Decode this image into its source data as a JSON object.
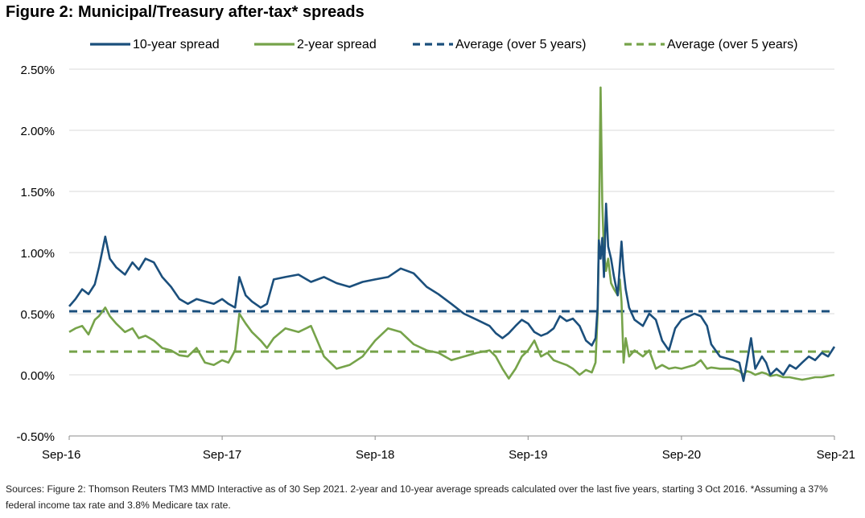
{
  "title": "Figure 2: Municipal/Treasury after-tax* spreads",
  "source": "Sources: Figure 2: Thomson Reuters TM3 MMD Interactive as of 30 Sep 2021. 2-year and 10-year average spreads calculated over the last five years, starting 3 Oct 2016. *Assuming a 37% federal income tax rate and 3.8% Medicare tax rate.",
  "colors": {
    "ten_year": "#1b4f7c",
    "two_year": "#76a34a",
    "grid": "#d9d9d9",
    "axis": "#8c8c8c"
  },
  "chart_data": {
    "type": "line",
    "xlim": [
      "2016-09-30",
      "2021-09-30"
    ],
    "ylim": [
      -0.5,
      2.5
    ],
    "y_ticks": [
      {
        "value": 2.5,
        "label": "2.50%"
      },
      {
        "value": 2.0,
        "label": "2.00%"
      },
      {
        "value": 1.5,
        "label": "1.50%"
      },
      {
        "value": 1.0,
        "label": "1.00%"
      },
      {
        "value": 0.5,
        "label": "0.50%"
      },
      {
        "value": 0.0,
        "label": "0.00%"
      },
      {
        "value": -0.5,
        "label": "-0.50%"
      }
    ],
    "x_ticks": [
      {
        "value": "2016-09-30",
        "label": "Sep-16"
      },
      {
        "value": "2017-09-30",
        "label": "Sep-17"
      },
      {
        "value": "2018-09-30",
        "label": "Sep-18"
      },
      {
        "value": "2019-09-30",
        "label": "Sep-19"
      },
      {
        "value": "2020-09-30",
        "label": "Sep-20"
      },
      {
        "value": "2021-09-30",
        "label": "Sep-21"
      }
    ],
    "grid": "horizontal",
    "legend_position": "top",
    "series": [
      {
        "name": "10-year spread",
        "style": "solid",
        "color": "#1b4f7c",
        "points": [
          [
            "2016-09-30",
            0.56
          ],
          [
            "2016-10-15",
            0.62
          ],
          [
            "2016-10-31",
            0.7
          ],
          [
            "2016-11-15",
            0.66
          ],
          [
            "2016-11-30",
            0.74
          ],
          [
            "2016-12-10",
            0.88
          ],
          [
            "2016-12-25",
            1.13
          ],
          [
            "2017-01-05",
            0.95
          ],
          [
            "2017-01-20",
            0.88
          ],
          [
            "2017-02-10",
            0.82
          ],
          [
            "2017-02-28",
            0.92
          ],
          [
            "2017-03-15",
            0.86
          ],
          [
            "2017-03-31",
            0.95
          ],
          [
            "2017-04-20",
            0.92
          ],
          [
            "2017-05-10",
            0.8
          ],
          [
            "2017-05-31",
            0.72
          ],
          [
            "2017-06-20",
            0.62
          ],
          [
            "2017-07-10",
            0.58
          ],
          [
            "2017-07-31",
            0.62
          ],
          [
            "2017-08-20",
            0.6
          ],
          [
            "2017-09-10",
            0.58
          ],
          [
            "2017-09-30",
            0.62
          ],
          [
            "2017-10-15",
            0.58
          ],
          [
            "2017-10-31",
            0.55
          ],
          [
            "2017-11-10",
            0.8
          ],
          [
            "2017-11-25",
            0.65
          ],
          [
            "2017-12-10",
            0.6
          ],
          [
            "2017-12-31",
            0.55
          ],
          [
            "2018-01-15",
            0.58
          ],
          [
            "2018-01-31",
            0.78
          ],
          [
            "2018-02-28",
            0.8
          ],
          [
            "2018-03-31",
            0.82
          ],
          [
            "2018-04-30",
            0.76
          ],
          [
            "2018-05-31",
            0.8
          ],
          [
            "2018-06-30",
            0.75
          ],
          [
            "2018-07-31",
            0.72
          ],
          [
            "2018-08-31",
            0.76
          ],
          [
            "2018-09-30",
            0.78
          ],
          [
            "2018-10-31",
            0.8
          ],
          [
            "2018-11-30",
            0.87
          ],
          [
            "2018-12-31",
            0.83
          ],
          [
            "2019-01-31",
            0.72
          ],
          [
            "2019-02-28",
            0.66
          ],
          [
            "2019-03-31",
            0.58
          ],
          [
            "2019-04-30",
            0.5
          ],
          [
            "2019-05-31",
            0.45
          ],
          [
            "2019-06-30",
            0.4
          ],
          [
            "2019-07-15",
            0.34
          ],
          [
            "2019-07-31",
            0.3
          ],
          [
            "2019-08-15",
            0.34
          ],
          [
            "2019-08-31",
            0.4
          ],
          [
            "2019-09-15",
            0.45
          ],
          [
            "2019-09-30",
            0.42
          ],
          [
            "2019-10-15",
            0.35
          ],
          [
            "2019-10-31",
            0.32
          ],
          [
            "2019-11-15",
            0.34
          ],
          [
            "2019-11-30",
            0.38
          ],
          [
            "2019-12-15",
            0.48
          ],
          [
            "2019-12-31",
            0.44
          ],
          [
            "2020-01-15",
            0.46
          ],
          [
            "2020-01-31",
            0.4
          ],
          [
            "2020-02-15",
            0.28
          ],
          [
            "2020-02-29",
            0.24
          ],
          [
            "2020-03-09",
            0.3
          ],
          [
            "2020-03-14",
            0.55
          ],
          [
            "2020-03-17",
            1.1
          ],
          [
            "2020-03-21",
            0.95
          ],
          [
            "2020-03-25",
            1.12
          ],
          [
            "2020-03-29",
            0.8
          ],
          [
            "2020-04-03",
            1.4
          ],
          [
            "2020-04-08",
            1.05
          ],
          [
            "2020-04-15",
            0.95
          ],
          [
            "2020-04-22",
            0.8
          ],
          [
            "2020-05-01",
            0.65
          ],
          [
            "2020-05-06",
            0.9
          ],
          [
            "2020-05-10",
            1.09
          ],
          [
            "2020-05-15",
            0.85
          ],
          [
            "2020-05-20",
            0.7
          ],
          [
            "2020-05-28",
            0.55
          ],
          [
            "2020-06-10",
            0.45
          ],
          [
            "2020-06-30",
            0.4
          ],
          [
            "2020-07-15",
            0.5
          ],
          [
            "2020-07-31",
            0.45
          ],
          [
            "2020-08-15",
            0.28
          ],
          [
            "2020-08-31",
            0.2
          ],
          [
            "2020-09-15",
            0.38
          ],
          [
            "2020-09-30",
            0.45
          ],
          [
            "2020-10-31",
            0.5
          ],
          [
            "2020-11-15",
            0.48
          ],
          [
            "2020-11-30",
            0.4
          ],
          [
            "2020-12-10",
            0.25
          ],
          [
            "2020-12-31",
            0.15
          ],
          [
            "2021-01-31",
            0.12
          ],
          [
            "2021-02-15",
            0.1
          ],
          [
            "2021-02-25",
            -0.05
          ],
          [
            "2021-03-05",
            0.1
          ],
          [
            "2021-03-15",
            0.3
          ],
          [
            "2021-03-25",
            0.05
          ],
          [
            "2021-04-10",
            0.15
          ],
          [
            "2021-04-20",
            0.1
          ],
          [
            "2021-04-30",
            0.0
          ],
          [
            "2021-05-15",
            0.05
          ],
          [
            "2021-05-31",
            0.0
          ],
          [
            "2021-06-15",
            0.08
          ],
          [
            "2021-06-30",
            0.05
          ],
          [
            "2021-07-15",
            0.1
          ],
          [
            "2021-07-31",
            0.15
          ],
          [
            "2021-08-15",
            0.12
          ],
          [
            "2021-08-31",
            0.18
          ],
          [
            "2021-09-15",
            0.15
          ],
          [
            "2021-09-30",
            0.23
          ]
        ]
      },
      {
        "name": "2-year spread",
        "style": "solid",
        "color": "#76a34a",
        "points": [
          [
            "2016-09-30",
            0.35
          ],
          [
            "2016-10-15",
            0.38
          ],
          [
            "2016-10-31",
            0.4
          ],
          [
            "2016-11-15",
            0.33
          ],
          [
            "2016-11-30",
            0.45
          ],
          [
            "2016-12-10",
            0.48
          ],
          [
            "2016-12-25",
            0.55
          ],
          [
            "2017-01-05",
            0.48
          ],
          [
            "2017-01-20",
            0.42
          ],
          [
            "2017-02-10",
            0.35
          ],
          [
            "2017-02-28",
            0.38
          ],
          [
            "2017-03-15",
            0.3
          ],
          [
            "2017-03-31",
            0.32
          ],
          [
            "2017-04-20",
            0.28
          ],
          [
            "2017-05-10",
            0.22
          ],
          [
            "2017-05-31",
            0.2
          ],
          [
            "2017-06-20",
            0.16
          ],
          [
            "2017-07-10",
            0.15
          ],
          [
            "2017-07-31",
            0.22
          ],
          [
            "2017-08-20",
            0.1
          ],
          [
            "2017-09-10",
            0.08
          ],
          [
            "2017-09-30",
            0.12
          ],
          [
            "2017-10-15",
            0.1
          ],
          [
            "2017-10-31",
            0.2
          ],
          [
            "2017-11-10",
            0.5
          ],
          [
            "2017-11-25",
            0.42
          ],
          [
            "2017-12-10",
            0.35
          ],
          [
            "2017-12-31",
            0.28
          ],
          [
            "2018-01-15",
            0.22
          ],
          [
            "2018-01-31",
            0.3
          ],
          [
            "2018-02-28",
            0.38
          ],
          [
            "2018-03-31",
            0.35
          ],
          [
            "2018-04-30",
            0.4
          ],
          [
            "2018-05-31",
            0.15
          ],
          [
            "2018-06-30",
            0.05
          ],
          [
            "2018-07-31",
            0.08
          ],
          [
            "2018-08-31",
            0.15
          ],
          [
            "2018-09-30",
            0.28
          ],
          [
            "2018-10-31",
            0.38
          ],
          [
            "2018-11-30",
            0.35
          ],
          [
            "2018-12-31",
            0.25
          ],
          [
            "2019-01-31",
            0.2
          ],
          [
            "2019-02-28",
            0.18
          ],
          [
            "2019-03-31",
            0.12
          ],
          [
            "2019-04-30",
            0.15
          ],
          [
            "2019-05-31",
            0.18
          ],
          [
            "2019-06-30",
            0.2
          ],
          [
            "2019-07-15",
            0.15
          ],
          [
            "2019-07-31",
            0.05
          ],
          [
            "2019-08-15",
            -0.03
          ],
          [
            "2019-08-31",
            0.05
          ],
          [
            "2019-09-15",
            0.15
          ],
          [
            "2019-09-30",
            0.2
          ],
          [
            "2019-10-15",
            0.28
          ],
          [
            "2019-10-31",
            0.15
          ],
          [
            "2019-11-15",
            0.18
          ],
          [
            "2019-11-30",
            0.12
          ],
          [
            "2019-12-15",
            0.1
          ],
          [
            "2019-12-31",
            0.08
          ],
          [
            "2020-01-15",
            0.05
          ],
          [
            "2020-01-31",
            0.0
          ],
          [
            "2020-02-15",
            0.04
          ],
          [
            "2020-02-29",
            0.02
          ],
          [
            "2020-03-09",
            0.1
          ],
          [
            "2020-03-14",
            0.5
          ],
          [
            "2020-03-17",
            1.15
          ],
          [
            "2020-03-21",
            2.35
          ],
          [
            "2020-03-25",
            1.4
          ],
          [
            "2020-03-29",
            1.0
          ],
          [
            "2020-04-03",
            0.85
          ],
          [
            "2020-04-08",
            0.95
          ],
          [
            "2020-04-15",
            0.75
          ],
          [
            "2020-04-22",
            0.7
          ],
          [
            "2020-05-01",
            0.65
          ],
          [
            "2020-05-06",
            0.78
          ],
          [
            "2020-05-10",
            0.6
          ],
          [
            "2020-05-15",
            0.1
          ],
          [
            "2020-05-20",
            0.3
          ],
          [
            "2020-05-28",
            0.15
          ],
          [
            "2020-06-10",
            0.2
          ],
          [
            "2020-06-30",
            0.15
          ],
          [
            "2020-07-15",
            0.2
          ],
          [
            "2020-07-31",
            0.05
          ],
          [
            "2020-08-15",
            0.08
          ],
          [
            "2020-08-31",
            0.05
          ],
          [
            "2020-09-15",
            0.06
          ],
          [
            "2020-09-30",
            0.05
          ],
          [
            "2020-10-31",
            0.08
          ],
          [
            "2020-11-15",
            0.12
          ],
          [
            "2020-11-30",
            0.05
          ],
          [
            "2020-12-10",
            0.06
          ],
          [
            "2020-12-31",
            0.05
          ],
          [
            "2021-01-31",
            0.05
          ],
          [
            "2021-02-15",
            0.03
          ],
          [
            "2021-02-25",
            0.0
          ],
          [
            "2021-03-05",
            0.03
          ],
          [
            "2021-03-15",
            0.02
          ],
          [
            "2021-03-25",
            0.0
          ],
          [
            "2021-04-10",
            0.02
          ],
          [
            "2021-04-20",
            0.01
          ],
          [
            "2021-04-30",
            -0.01
          ],
          [
            "2021-05-15",
            0.0
          ],
          [
            "2021-05-31",
            -0.02
          ],
          [
            "2021-06-15",
            -0.02
          ],
          [
            "2021-06-30",
            -0.03
          ],
          [
            "2021-07-15",
            -0.04
          ],
          [
            "2021-07-31",
            -0.03
          ],
          [
            "2021-08-15",
            -0.02
          ],
          [
            "2021-08-31",
            -0.02
          ],
          [
            "2021-09-15",
            -0.01
          ],
          [
            "2021-09-30",
            0.0
          ]
        ]
      },
      {
        "name": "Average (over 5 years)",
        "style": "dashed",
        "color": "#1b4f7c",
        "points": [
          [
            "2016-09-30",
            0.52
          ],
          [
            "2021-09-30",
            0.52
          ]
        ]
      },
      {
        "name": "Average (over 5 years)",
        "style": "dashed",
        "color": "#76a34a",
        "points": [
          [
            "2016-09-30",
            0.19
          ],
          [
            "2021-09-30",
            0.19
          ]
        ]
      }
    ]
  }
}
